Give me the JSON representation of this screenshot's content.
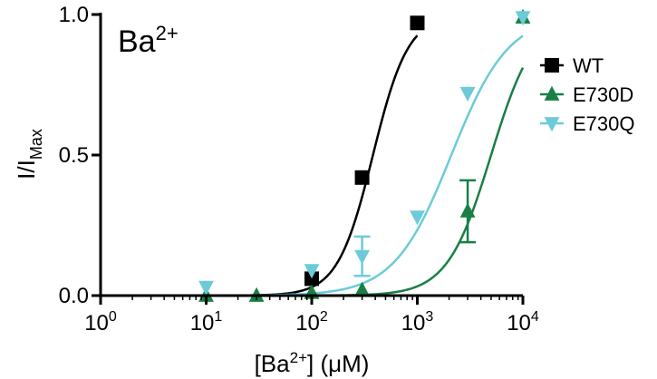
{
  "chart_data": {
    "type": "scatter",
    "title": "Ba2+",
    "xlabel": "[Ba2+] (μM)",
    "ylabel": "I/IMax",
    "x_scale": "log",
    "xlim": [
      1,
      10000
    ],
    "ylim": [
      0,
      1
    ],
    "x_ticks": [
      1,
      10,
      100,
      1000,
      10000
    ],
    "x_tick_labels": [
      "10^0",
      "10^1",
      "10^2",
      "10^3",
      "10^4"
    ],
    "y_ticks": [
      0,
      0.5,
      1
    ],
    "y_tick_labels": [
      "0.0",
      "0.5",
      "1.0"
    ],
    "legend_position": "right",
    "grid": false,
    "series": [
      {
        "name": "WT",
        "marker": "square",
        "color": "#000000",
        "x": [
          100,
          300,
          1000
        ],
        "y": [
          0.06,
          0.42,
          0.97
        ],
        "err": [
          0,
          0,
          0
        ],
        "fit": {
          "ec50": 380,
          "hill": 2.6,
          "xmax": 1000
        }
      },
      {
        "name": "E730D",
        "marker": "triangle-up",
        "color": "#1a7f44",
        "x": [
          10,
          30,
          100,
          300,
          3000,
          10000
        ],
        "y": [
          0.0,
          0.0,
          0.01,
          0.02,
          0.3,
          0.99
        ],
        "err": [
          0,
          0,
          0,
          0,
          0.11,
          0
        ],
        "fit": {
          "ec50": 5000,
          "hill": 2.1,
          "xmax": 10000
        }
      },
      {
        "name": "E730Q",
        "marker": "triangle-down",
        "color": "#6ccbd8",
        "x": [
          10,
          100,
          300,
          1000,
          3000,
          10000
        ],
        "y": [
          0.03,
          0.09,
          0.14,
          0.28,
          0.72,
          0.99
        ],
        "err": [
          0,
          0,
          0.07,
          0,
          0,
          0
        ],
        "fit": {
          "ec50": 2100,
          "hill": 1.6,
          "xmax": 10000
        }
      }
    ]
  }
}
